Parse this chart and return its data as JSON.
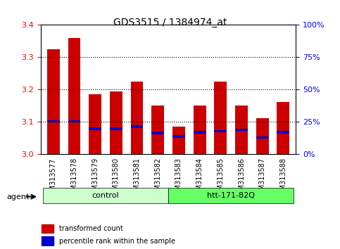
{
  "title": "GDS3515 / 1384974_at",
  "samples": [
    "GSM313577",
    "GSM313578",
    "GSM313579",
    "GSM313580",
    "GSM313581",
    "GSM313582",
    "GSM313583",
    "GSM313584",
    "GSM313585",
    "GSM313586",
    "GSM313587",
    "GSM313588"
  ],
  "red_values": [
    3.325,
    3.36,
    3.185,
    3.195,
    3.225,
    3.152,
    3.085,
    3.152,
    3.225,
    3.152,
    3.112,
    3.162
  ],
  "blue_values": [
    3.098,
    3.098,
    3.075,
    3.075,
    3.082,
    3.062,
    3.052,
    3.065,
    3.068,
    3.072,
    3.048,
    3.065
  ],
  "blue_heights": [
    0.008,
    0.008,
    0.008,
    0.008,
    0.008,
    0.008,
    0.008,
    0.008,
    0.008,
    0.008,
    0.008,
    0.008
  ],
  "y_min": 3.0,
  "y_max": 3.4,
  "y_ticks": [
    3.0,
    3.1,
    3.2,
    3.3,
    3.4
  ],
  "right_y_ticks": [
    0,
    25,
    50,
    75,
    100
  ],
  "right_y_labels": [
    "0%",
    "25%",
    "50%",
    "75%",
    "100%"
  ],
  "groups": [
    {
      "label": "control",
      "start": 0,
      "end": 5,
      "color": "#ccffcc"
    },
    {
      "label": "htt-171-82Q",
      "start": 6,
      "end": 11,
      "color": "#66ff66"
    }
  ],
  "group_label": "agent",
  "bar_color": "#cc0000",
  "blue_color": "#0000cc",
  "background_color": "#cccccc",
  "plot_bg": "#ffffff",
  "legend_items": [
    {
      "color": "#cc0000",
      "label": "transformed count"
    },
    {
      "color": "#0000cc",
      "label": "percentile rank within the sample"
    }
  ],
  "grid_style": "dotted",
  "bar_width": 0.6
}
